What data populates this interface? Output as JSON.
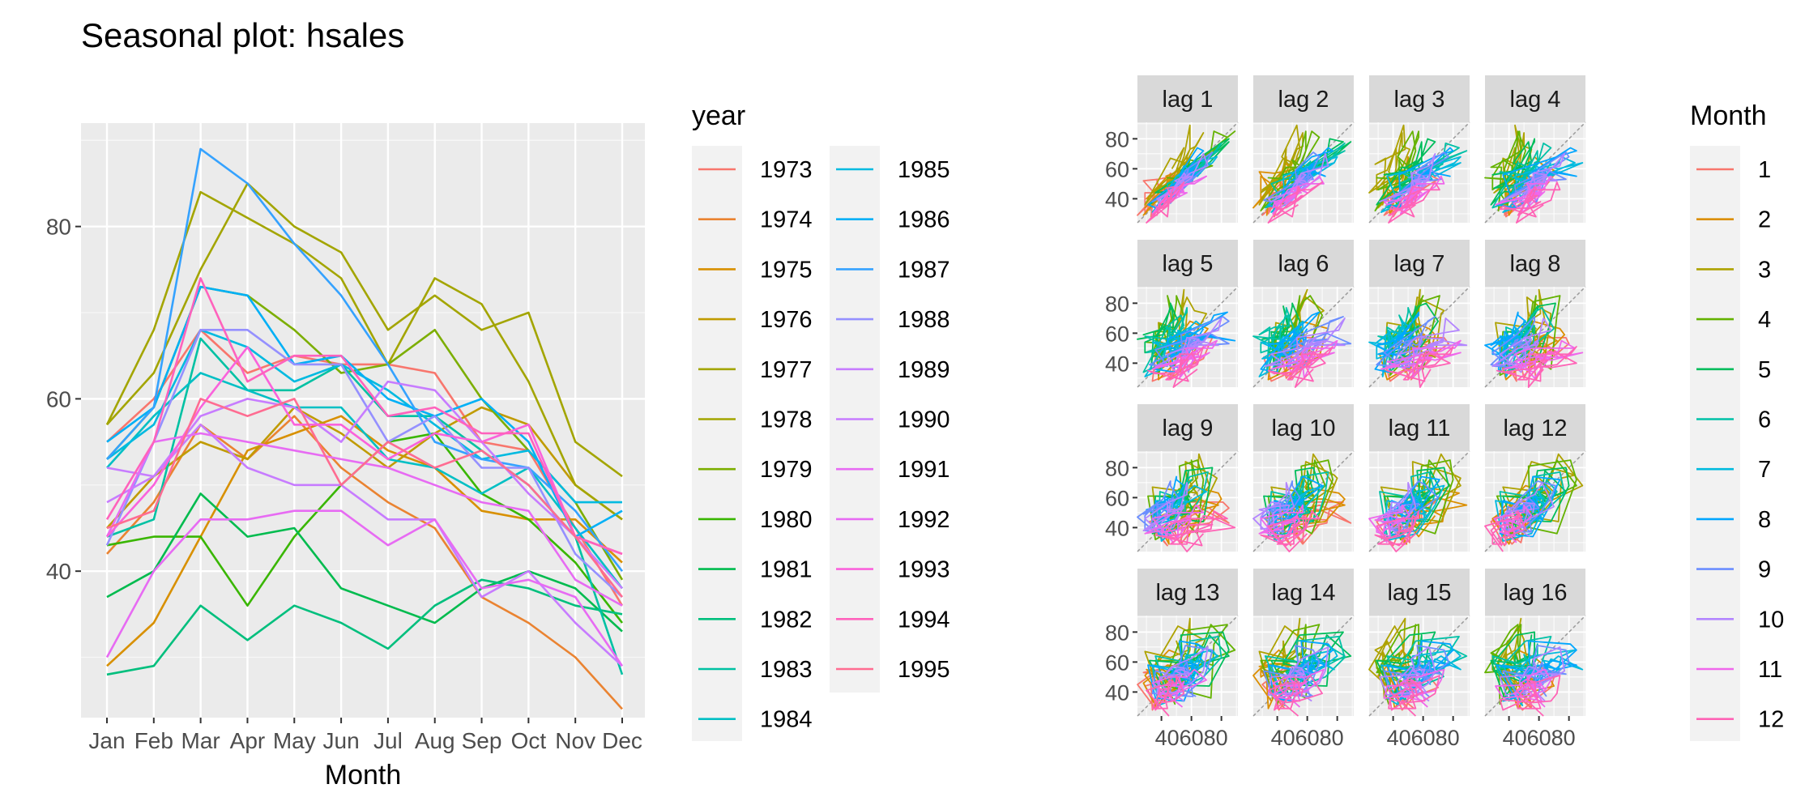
{
  "colors": {
    "panel_background": "#EBEBEB",
    "grid_major": "#FFFFFF",
    "strip_background": "#D9D9D9",
    "axis_text": "#4D4D4D",
    "text": "#000000"
  },
  "chart_data": [
    {
      "type": "line",
      "title": "Seasonal plot: hsales",
      "xlabel": "Month",
      "ylabel": "",
      "categories": [
        "Jan",
        "Feb",
        "Mar",
        "Apr",
        "May",
        "Jun",
        "Jul",
        "Aug",
        "Sep",
        "Oct",
        "Nov",
        "Dec"
      ],
      "yticks": [
        40,
        60,
        80
      ],
      "ylim": [
        23,
        92
      ],
      "grid": true,
      "legend": {
        "title": "year",
        "position": "right"
      },
      "series": [
        {
          "name": "1973",
          "color": "#F8766D",
          "values": [
            55,
            60,
            68,
            63,
            65,
            64,
            64,
            63,
            55,
            54,
            45,
            36
          ]
        },
        {
          "name": "1974",
          "color": "#EA8331",
          "values": [
            42,
            48,
            57,
            53,
            58,
            52,
            48,
            45,
            37,
            34,
            30,
            24
          ]
        },
        {
          "name": "1975",
          "color": "#D89000",
          "values": [
            29,
            34,
            44,
            54,
            56,
            58,
            54,
            52,
            47,
            46,
            46,
            41
          ]
        },
        {
          "name": "1976",
          "color": "#C09B00",
          "values": [
            45,
            51,
            55,
            53,
            59,
            56,
            52,
            56,
            59,
            57,
            50,
            46
          ]
        },
        {
          "name": "1977",
          "color": "#A3A500",
          "values": [
            57,
            68,
            84,
            81,
            78,
            74,
            64,
            74,
            71,
            62,
            50,
            46
          ]
        },
        {
          "name": "1978",
          "color": "#A3A500",
          "values": [
            57,
            63,
            75,
            85,
            80,
            77,
            68,
            72,
            68,
            70,
            55,
            51
          ]
        },
        {
          "name": "1979",
          "color": "#7CAE00",
          "values": [
            53,
            59,
            73,
            72,
            68,
            63,
            64,
            68,
            60,
            54,
            48,
            39
          ]
        },
        {
          "name": "1980",
          "color": "#39B600",
          "values": [
            43,
            44,
            44,
            36,
            44,
            50,
            55,
            56,
            49,
            46,
            41,
            34
          ]
        },
        {
          "name": "1981",
          "color": "#00BB4E",
          "values": [
            37,
            40,
            49,
            44,
            45,
            38,
            36,
            34,
            38,
            40,
            38,
            33
          ]
        },
        {
          "name": "1982",
          "color": "#00BF7D",
          "values": [
            28,
            29,
            36,
            32,
            36,
            34,
            31,
            36,
            39,
            38,
            36,
            35
          ]
        },
        {
          "name": "1983",
          "color": "#00C1A3",
          "values": [
            44,
            46,
            67,
            61,
            61,
            64,
            58,
            58,
            54,
            50,
            44,
            28
          ]
        },
        {
          "name": "1984",
          "color": "#00BFC4",
          "values": [
            52,
            58,
            63,
            61,
            59,
            59,
            53,
            52,
            49,
            52,
            45,
            38
          ]
        },
        {
          "name": "1985",
          "color": "#00BAE0",
          "values": [
            53,
            57,
            68,
            66,
            62,
            64,
            61,
            57,
            53,
            54,
            48,
            48
          ]
        },
        {
          "name": "1986",
          "color": "#00B0F6",
          "values": [
            55,
            59,
            73,
            72,
            64,
            65,
            60,
            58,
            60,
            55,
            44,
            47
          ]
        },
        {
          "name": "1987",
          "color": "#35A2FF",
          "values": [
            53,
            59,
            89,
            85,
            78,
            72,
            64,
            55,
            53,
            52,
            47,
            40
          ]
        },
        {
          "name": "1988",
          "color": "#9590FF",
          "values": [
            43,
            55,
            68,
            68,
            64,
            64,
            55,
            58,
            52,
            52,
            42,
            37
          ]
        },
        {
          "name": "1989",
          "color": "#C77CFF",
          "values": [
            52,
            51,
            58,
            60,
            59,
            55,
            62,
            61,
            55,
            49,
            44,
            38
          ]
        },
        {
          "name": "1990",
          "color": "#C77CFF",
          "values": [
            48,
            51,
            57,
            52,
            50,
            50,
            46,
            46,
            37,
            40,
            34,
            29
          ]
        },
        {
          "name": "1991",
          "color": "#E76BF3",
          "values": [
            30,
            40,
            46,
            46,
            47,
            47,
            43,
            46,
            38,
            39,
            37,
            29
          ]
        },
        {
          "name": "1992",
          "color": "#E76BF3",
          "values": [
            44,
            55,
            56,
            55,
            54,
            53,
            52,
            50,
            48,
            47,
            39,
            36
          ]
        },
        {
          "name": "1993",
          "color": "#FA62DB",
          "values": [
            44,
            50,
            59,
            66,
            57,
            57,
            53,
            56,
            55,
            57,
            44,
            42
          ]
        },
        {
          "name": "1994",
          "color": "#FF62BC",
          "values": [
            46,
            55,
            74,
            62,
            65,
            65,
            58,
            59,
            56,
            56,
            44,
            42
          ]
        },
        {
          "name": "1995",
          "color": "#FF6C91",
          "values": [
            45,
            47,
            60,
            58,
            60,
            50,
            55,
            52,
            54,
            50,
            44,
            37
          ]
        }
      ]
    },
    {
      "type": "scatter",
      "subtype": "lag-plot-grid",
      "title": "",
      "panels": [
        "lag 1",
        "lag 2",
        "lag 3",
        "lag 4",
        "lag 5",
        "lag 6",
        "lag 7",
        "lag 8",
        "lag 9",
        "lag 10",
        "lag 11",
        "lag 12",
        "lag 13",
        "lag 14",
        "lag 15",
        "lag 16"
      ],
      "xticks": [
        40,
        60,
        80
      ],
      "xtick_labels": "406080",
      "yticks": [
        40,
        60,
        80
      ],
      "xlim": [
        24,
        91
      ],
      "ylim": [
        24,
        91
      ],
      "reference_line": "y = x (dashed)",
      "legend": {
        "title": "Month",
        "position": "right",
        "entries": [
          "1",
          "2",
          "3",
          "4",
          "5",
          "6",
          "7",
          "8",
          "9",
          "10",
          "11",
          "12"
        ],
        "colors": [
          "#F8766D",
          "#DB8E00",
          "#AEA200",
          "#64B200",
          "#00BD5C",
          "#00C1A7",
          "#00BADE",
          "#00A6FF",
          "#6B8EFF",
          "#B385FF",
          "#EF67EB",
          "#FF63B6"
        ]
      },
      "note": "Each panel plots hsales against lagged hsales, one path per month, using the hsales series shown in the seasonal plot."
    }
  ]
}
